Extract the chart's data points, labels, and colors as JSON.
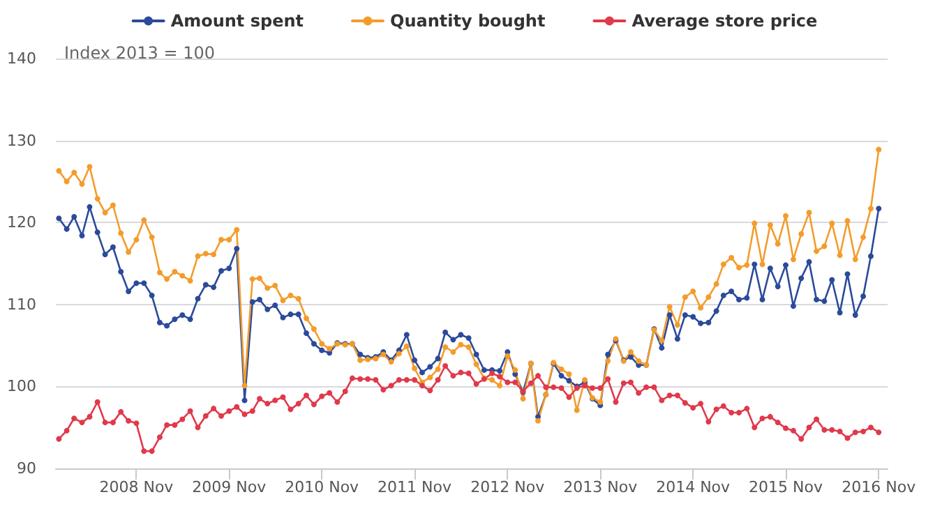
{
  "chart_data": {
    "type": "line",
    "annotations": [
      "Index 2013 = 100"
    ],
    "x": [
      "2008-01",
      "2008-02",
      "2008-03",
      "2008-04",
      "2008-05",
      "2008-06",
      "2008-07",
      "2008-08",
      "2008-09",
      "2008-10",
      "2008-11",
      "2008-12",
      "2009-01",
      "2009-02",
      "2009-03",
      "2009-04",
      "2009-05",
      "2009-06",
      "2009-07",
      "2009-08",
      "2009-09",
      "2009-10",
      "2009-11",
      "2009-12",
      "2010-01",
      "2010-02",
      "2010-03",
      "2010-04",
      "2010-05",
      "2010-06",
      "2010-07",
      "2010-08",
      "2010-09",
      "2010-10",
      "2010-11",
      "2010-12",
      "2011-01",
      "2011-02",
      "2011-03",
      "2011-04",
      "2011-05",
      "2011-06",
      "2011-07",
      "2011-08",
      "2011-09",
      "2011-10",
      "2011-11",
      "2011-12",
      "2012-01",
      "2012-02",
      "2012-03",
      "2012-04",
      "2012-05",
      "2012-06",
      "2012-07",
      "2012-08",
      "2012-09",
      "2012-10",
      "2012-11",
      "2012-12",
      "2013-01",
      "2013-02",
      "2013-03",
      "2013-04",
      "2013-05",
      "2013-06",
      "2013-07",
      "2013-08",
      "2013-09",
      "2013-10",
      "2013-11",
      "2013-12",
      "2014-01",
      "2014-02",
      "2014-03",
      "2014-04",
      "2014-05",
      "2014-06",
      "2014-07",
      "2014-08",
      "2014-09",
      "2014-10",
      "2014-11",
      "2014-12",
      "2015-01",
      "2015-02",
      "2015-03",
      "2015-04",
      "2015-05",
      "2015-06",
      "2015-07",
      "2015-08",
      "2015-09",
      "2015-10",
      "2015-11",
      "2015-12",
      "2016-01",
      "2016-02",
      "2016-03",
      "2016-04",
      "2016-05",
      "2016-06",
      "2016-07",
      "2016-08",
      "2016-09",
      "2016-10",
      "2016-11"
    ],
    "series": [
      {
        "name": "Amount spent",
        "color": "#2b4a9a",
        "values": [
          120.5,
          119.2,
          120.7,
          118.4,
          121.9,
          118.8,
          116.1,
          117.0,
          114.0,
          111.6,
          112.6,
          112.6,
          111.1,
          107.8,
          107.4,
          108.2,
          108.7,
          108.2,
          110.7,
          112.4,
          112.1,
          114.1,
          114.4,
          116.8,
          98.3,
          110.3,
          110.6,
          109.4,
          109.9,
          108.4,
          108.8,
          108.8,
          106.5,
          105.2,
          104.4,
          104.1,
          105.3,
          105.2,
          105.2,
          103.9,
          103.5,
          103.6,
          104.2,
          103.2,
          104.4,
          106.3,
          103.2,
          101.7,
          102.4,
          103.4,
          106.6,
          105.7,
          106.3,
          105.9,
          103.9,
          102.0,
          102.0,
          101.9,
          104.2,
          101.5,
          99.3,
          102.8,
          96.3,
          99.0,
          102.8,
          101.3,
          100.7,
          100.0,
          100.5,
          98.5,
          97.7,
          103.9,
          105.6,
          103.2,
          103.6,
          102.6,
          102.6,
          107.0,
          104.7,
          108.7,
          105.8,
          108.7,
          108.5,
          107.7,
          107.8,
          109.2,
          111.1,
          111.6,
          110.6,
          110.8,
          114.9,
          110.6,
          114.4,
          112.2,
          114.8,
          109.8,
          113.2,
          115.2,
          110.6,
          110.4,
          113.0,
          109.0,
          113.7,
          108.7,
          111.0,
          115.9,
          121.7
        ]
      },
      {
        "name": "Quantity bought",
        "color": "#f39c2c",
        "values": [
          126.3,
          125.0,
          126.1,
          124.7,
          126.8,
          122.9,
          121.2,
          122.1,
          118.7,
          116.4,
          117.9,
          120.3,
          118.2,
          113.9,
          113.1,
          114.0,
          113.5,
          112.9,
          115.9,
          116.2,
          116.1,
          117.9,
          117.9,
          119.1,
          100.1,
          113.1,
          113.2,
          112.0,
          112.3,
          110.5,
          111.1,
          110.7,
          108.3,
          107.0,
          105.2,
          104.6,
          105.2,
          105.1,
          105.2,
          103.2,
          103.3,
          103.4,
          103.9,
          103.0,
          104.0,
          104.9,
          102.2,
          100.5,
          101.1,
          102.1,
          104.8,
          104.2,
          105.1,
          104.8,
          102.7,
          101.0,
          100.8,
          100.1,
          103.7,
          102.0,
          98.5,
          102.8,
          95.8,
          99.0,
          102.9,
          102.1,
          101.5,
          97.1,
          100.8,
          98.6,
          98.1,
          103.1,
          105.8,
          103.1,
          104.2,
          103.1,
          102.6,
          106.9,
          105.6,
          109.7,
          107.5,
          110.9,
          111.6,
          109.6,
          110.9,
          112.5,
          114.9,
          115.7,
          114.5,
          114.8,
          119.9,
          114.9,
          119.7,
          117.4,
          120.8,
          115.5,
          118.6,
          121.2,
          116.5,
          117.1,
          119.9,
          116.0,
          120.2,
          115.5,
          118.2,
          121.7,
          128.9
        ]
      },
      {
        "name": "Average store price",
        "color": "#e0394b",
        "values": [
          93.6,
          94.6,
          96.1,
          95.6,
          96.3,
          98.1,
          95.6,
          95.6,
          96.9,
          95.8,
          95.5,
          92.1,
          92.1,
          93.8,
          95.3,
          95.3,
          96.0,
          97.0,
          95.0,
          96.4,
          97.3,
          96.4,
          97.0,
          97.5,
          96.6,
          97.0,
          98.5,
          97.9,
          98.3,
          98.7,
          97.2,
          97.9,
          98.9,
          97.8,
          98.8,
          99.2,
          98.1,
          99.4,
          101.0,
          100.9,
          100.9,
          100.8,
          99.6,
          100.1,
          100.8,
          100.8,
          100.8,
          100.1,
          99.5,
          100.8,
          102.5,
          101.3,
          101.7,
          101.6,
          100.3,
          100.9,
          101.6,
          101.2,
          100.5,
          100.5,
          99.4,
          100.4,
          101.3,
          99.9,
          99.9,
          99.8,
          98.7,
          99.8,
          100.1,
          99.8,
          99.8,
          100.9,
          98.1,
          100.4,
          100.5,
          99.2,
          99.9,
          99.9,
          98.3,
          98.9,
          98.9,
          98.0,
          97.4,
          97.9,
          95.7,
          97.2,
          97.6,
          96.8,
          96.8,
          97.3,
          95.0,
          96.1,
          96.3,
          95.6,
          94.9,
          94.6,
          93.6,
          95.0,
          96.0,
          94.7,
          94.7,
          94.5,
          93.7,
          94.4,
          94.5,
          95.0,
          94.4
        ]
      }
    ],
    "xlim": [
      "2007-12-20",
      "2016-12-06"
    ],
    "xticks": [
      {
        "value": "2008-11",
        "label": "2008 Nov"
      },
      {
        "value": "2009-11",
        "label": "2009 Nov"
      },
      {
        "value": "2010-11",
        "label": "2010 Nov"
      },
      {
        "value": "2011-11",
        "label": "2011 Nov"
      },
      {
        "value": "2012-11",
        "label": "2012 Nov"
      },
      {
        "value": "2013-11",
        "label": "2013 Nov"
      },
      {
        "value": "2014-11",
        "label": "2014 Nov"
      },
      {
        "value": "2015-11",
        "label": "2015 Nov"
      },
      {
        "value": "2016-11",
        "label": "2016 Nov"
      }
    ],
    "ylim": [
      90,
      140
    ],
    "yticks": [
      90,
      100,
      110,
      120,
      130,
      140
    ],
    "grid": "y",
    "legend": "top",
    "marker": "circle",
    "line_style": "solid"
  }
}
